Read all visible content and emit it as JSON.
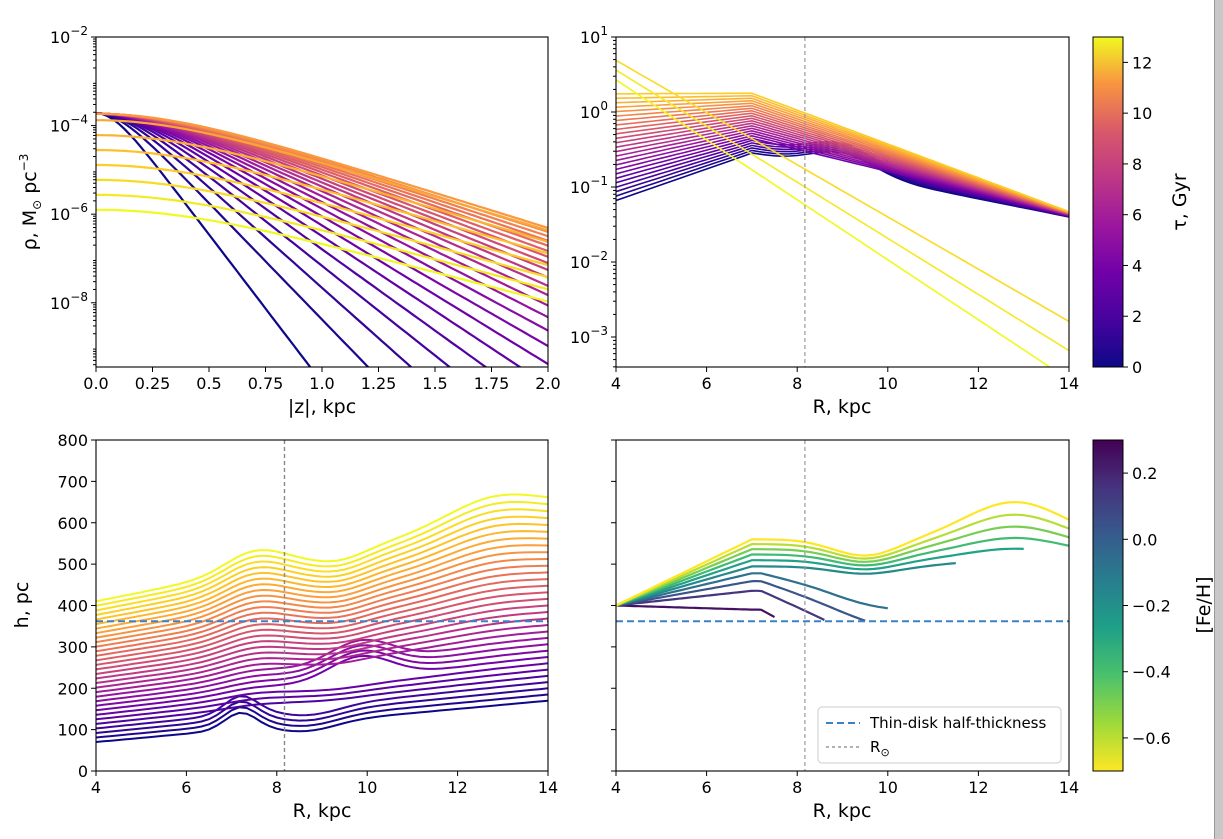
{
  "chart_data": [
    {
      "type": "line",
      "panel": "top-left",
      "xlabel": "|z|,  kpc",
      "ylabel": "ρ,  M",
      "ylabel_sub": "⊙",
      "ylabel_unit": "  pc",
      "ylabel_sup": "−3",
      "xlim": [
        0,
        2
      ],
      "ylim_log10": [
        -9.45,
        -2
      ],
      "yscale": "log",
      "xticks": [
        "0.0",
        "0.25",
        "0.5",
        "0.75",
        "1.0",
        "1.25",
        "1.5",
        "1.75",
        "2.0"
      ],
      "yticks": [
        {
          "exp": "−2",
          "v": -2
        },
        {
          "exp": "−4",
          "v": -4
        },
        {
          "exp": "−6",
          "v": -6
        },
        {
          "exp": "−8",
          "v": -8
        }
      ],
      "series_note": "Vertical density profiles, one curve per stellar age, coloured by age (plasma colormap)"
    },
    {
      "type": "line",
      "panel": "top-right",
      "xlabel": "R,  kpc",
      "ylabel": "",
      "xlim": [
        4,
        14
      ],
      "ylim_log10": [
        -3.4,
        1
      ],
      "yscale": "log",
      "xticks": [
        "4",
        "6",
        "8",
        "10",
        "12",
        "14"
      ],
      "yticks": [
        {
          "exp": "1",
          "v": 1
        },
        {
          "exp": "0",
          "v": 0
        },
        {
          "exp": "−1",
          "v": -1
        },
        {
          "exp": "−2",
          "v": -2
        },
        {
          "exp": "−3",
          "v": -3
        }
      ],
      "r_sun": 8.17
    },
    {
      "type": "line",
      "panel": "bottom-left",
      "xlabel": "R,  kpc",
      "ylabel": "h,  pc",
      "xlim": [
        4,
        14
      ],
      "ylim": [
        0,
        800
      ],
      "xticks": [
        "4",
        "6",
        "8",
        "10",
        "12",
        "14"
      ],
      "yticks": [
        "0",
        "100",
        "200",
        "300",
        "400",
        "500",
        "600",
        "700",
        "800"
      ],
      "thin_disk_half_thickness": 362,
      "r_sun": 8.17
    },
    {
      "type": "line",
      "panel": "bottom-right",
      "xlabel": "R,  kpc",
      "ylabel": "",
      "xlim": [
        4,
        14
      ],
      "ylim": [
        0,
        800
      ],
      "xticks": [
        "4",
        "6",
        "8",
        "10",
        "12",
        "14"
      ],
      "thin_disk_half_thickness": 362,
      "r_sun": 8.17,
      "legend": {
        "placement": "lower-right",
        "entries": [
          {
            "label": "Thin-disk half-thickness",
            "style": "dashed",
            "color": "#3b82c4"
          },
          {
            "label": "R",
            "sub": "⊙",
            "style": "dashed",
            "color": "#999999"
          }
        ]
      }
    }
  ],
  "colorbars": [
    {
      "label": "τ,  Gyr",
      "colormap": "plasma",
      "range": [
        0,
        13
      ],
      "ticks": [
        "0",
        "2",
        "4",
        "6",
        "8",
        "10",
        "12"
      ],
      "tick_values": [
        0,
        2,
        4,
        6,
        8,
        10,
        12
      ]
    },
    {
      "label": "[Fe/H]",
      "colormap": "viridis_r",
      "range": [
        -0.7,
        0.3
      ],
      "ticks": [
        "0.2",
        "0.0",
        "−0.2",
        "−0.4",
        "−0.6"
      ],
      "tick_values": [
        0.2,
        0.0,
        -0.2,
        -0.4,
        -0.6
      ]
    }
  ],
  "colors": {
    "thin_disk_line": "#3b82c4",
    "r_sun_line": "#999999"
  }
}
